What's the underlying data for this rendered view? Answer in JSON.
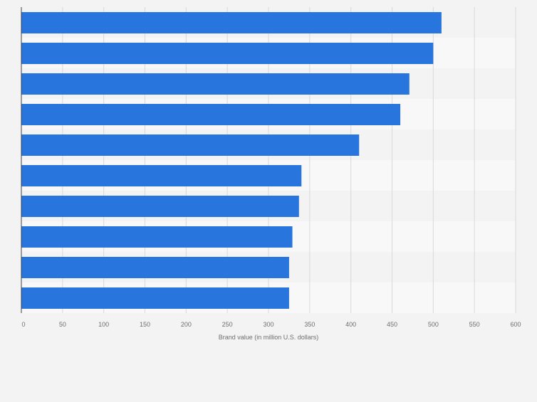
{
  "chart_data": {
    "type": "bar",
    "orientation": "horizontal",
    "title": "",
    "xlabel": "Brand value (in million U.S. dollars)",
    "ylabel": "",
    "xlim": [
      0,
      600
    ],
    "ticks": [
      "0",
      "50",
      "100",
      "150",
      "200",
      "250",
      "300",
      "350",
      "400",
      "450",
      "500",
      "550",
      "600"
    ],
    "tick_values": [
      0,
      50,
      100,
      150,
      200,
      250,
      300,
      350,
      400,
      450,
      500,
      550,
      600
    ],
    "categories": [
      "",
      "",
      "",
      "",
      "",
      "",
      "",
      "",
      "",
      ""
    ],
    "values": [
      510,
      500,
      471,
      460,
      410,
      340,
      337,
      329,
      325,
      325
    ],
    "grid": true,
    "legend": "none"
  },
  "colors": {
    "bar": "#2876dd",
    "band_dark": "#f3f3f3",
    "band_light": "#f8f8f8",
    "grid": "#d9d9d9",
    "axis": "#404040",
    "tick_text": "#6f6f6f",
    "page_bg": "#f3f3f3"
  }
}
